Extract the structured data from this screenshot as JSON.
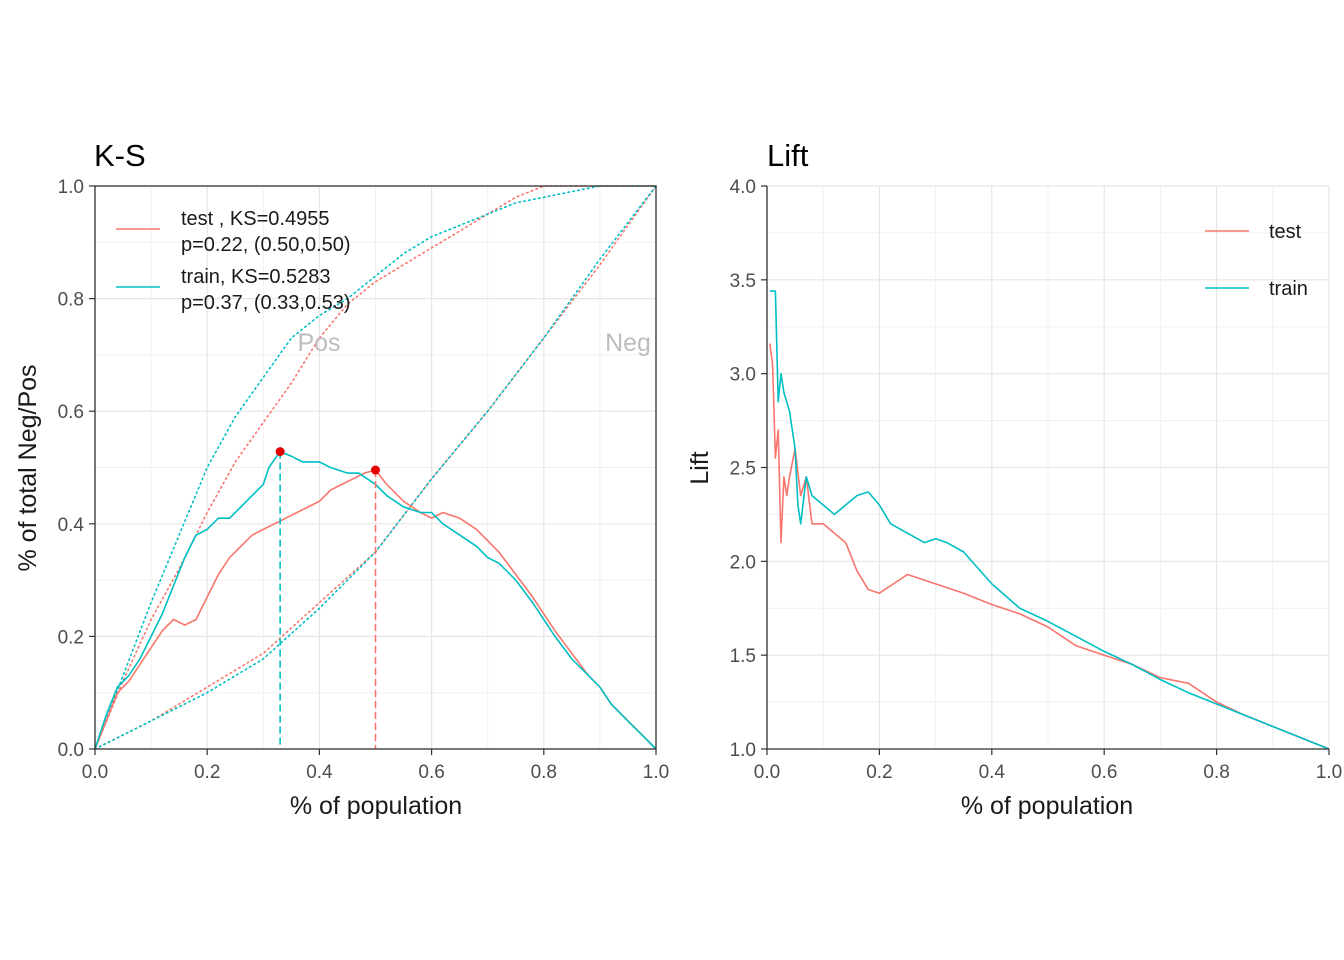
{
  "colors": {
    "test": "#F8766D",
    "train": "#00BFC4",
    "ks_point": "#e60000",
    "annotation": "#bdbdbd"
  },
  "chart_data": [
    {
      "type": "line",
      "title": "K-S",
      "xlabel": "% of population",
      "ylabel": "% of total Neg/Pos",
      "xlim": [
        0,
        1
      ],
      "ylim": [
        0,
        1
      ],
      "xticks": [
        0.0,
        0.2,
        0.4,
        0.6,
        0.8,
        1.0
      ],
      "xtick_labels": [
        "0.0",
        "0.2",
        "0.4",
        "0.6",
        "0.8",
        "1.0"
      ],
      "yticks": [
        0.0,
        0.2,
        0.4,
        0.6,
        0.8,
        1.0
      ],
      "ytick_labels": [
        "0.0",
        "0.2",
        "0.4",
        "0.6",
        "0.8",
        "1.0"
      ],
      "grid": true,
      "legend_position": "top-left",
      "legend": [
        {
          "key": "test",
          "line1": "test , KS=0.4955",
          "line2": "p=0.22, (0.50,0.50)"
        },
        {
          "key": "train",
          "line1": "train, KS=0.5283",
          "line2": "p=0.37, (0.33,0.53)"
        }
      ],
      "annotations": [
        {
          "text": "Pos",
          "x": 0.4,
          "y": 0.72
        },
        {
          "text": "Neg",
          "x": 0.95,
          "y": 0.72
        }
      ],
      "series": [
        {
          "name": "test",
          "role": "ks",
          "color_key": "test",
          "x": [
            0,
            0.02,
            0.04,
            0.06,
            0.08,
            0.1,
            0.12,
            0.14,
            0.16,
            0.18,
            0.2,
            0.22,
            0.24,
            0.26,
            0.28,
            0.3,
            0.32,
            0.34,
            0.36,
            0.38,
            0.4,
            0.42,
            0.44,
            0.46,
            0.48,
            0.5,
            0.52,
            0.55,
            0.58,
            0.6,
            0.62,
            0.65,
            0.68,
            0.7,
            0.72,
            0.75,
            0.78,
            0.8,
            0.82,
            0.85,
            0.88,
            0.9,
            0.92,
            0.95,
            0.98,
            1.0
          ],
          "y": [
            0,
            0.05,
            0.1,
            0.12,
            0.15,
            0.18,
            0.21,
            0.23,
            0.22,
            0.23,
            0.27,
            0.31,
            0.34,
            0.36,
            0.38,
            0.39,
            0.4,
            0.41,
            0.42,
            0.43,
            0.44,
            0.46,
            0.47,
            0.48,
            0.49,
            0.4955,
            0.47,
            0.44,
            0.42,
            0.41,
            0.42,
            0.41,
            0.39,
            0.37,
            0.35,
            0.31,
            0.27,
            0.24,
            0.21,
            0.17,
            0.13,
            0.11,
            0.08,
            0.05,
            0.02,
            0
          ]
        },
        {
          "name": "train",
          "role": "ks",
          "color_key": "train",
          "x": [
            0,
            0.02,
            0.04,
            0.06,
            0.08,
            0.1,
            0.12,
            0.14,
            0.16,
            0.18,
            0.2,
            0.22,
            0.24,
            0.26,
            0.28,
            0.3,
            0.31,
            0.33,
            0.35,
            0.37,
            0.4,
            0.42,
            0.45,
            0.47,
            0.5,
            0.52,
            0.55,
            0.58,
            0.6,
            0.62,
            0.65,
            0.68,
            0.7,
            0.72,
            0.75,
            0.78,
            0.8,
            0.82,
            0.85,
            0.88,
            0.9,
            0.92,
            0.95,
            0.98,
            1.0
          ],
          "y": [
            0,
            0.06,
            0.11,
            0.13,
            0.16,
            0.2,
            0.24,
            0.29,
            0.34,
            0.38,
            0.39,
            0.41,
            0.41,
            0.43,
            0.45,
            0.47,
            0.5,
            0.5283,
            0.52,
            0.51,
            0.51,
            0.5,
            0.49,
            0.49,
            0.47,
            0.45,
            0.43,
            0.42,
            0.42,
            0.4,
            0.38,
            0.36,
            0.34,
            0.33,
            0.3,
            0.26,
            0.23,
            0.2,
            0.16,
            0.13,
            0.11,
            0.08,
            0.05,
            0.02,
            0
          ]
        },
        {
          "name": "test",
          "role": "cum_pos",
          "color_key": "test",
          "x": [
            0,
            0.05,
            0.1,
            0.15,
            0.2,
            0.25,
            0.3,
            0.35,
            0.4,
            0.45,
            0.5,
            0.55,
            0.6,
            0.65,
            0.7,
            0.75,
            0.8,
            0.85,
            0.9,
            0.95,
            1.0
          ],
          "y": [
            0,
            0.12,
            0.23,
            0.32,
            0.42,
            0.51,
            0.58,
            0.65,
            0.73,
            0.79,
            0.83,
            0.86,
            0.89,
            0.92,
            0.95,
            0.98,
            1.0,
            1.0,
            1.0,
            1.0,
            1.0
          ]
        },
        {
          "name": "train",
          "role": "cum_pos",
          "color_key": "train",
          "x": [
            0,
            0.05,
            0.1,
            0.15,
            0.2,
            0.25,
            0.3,
            0.35,
            0.4,
            0.45,
            0.5,
            0.55,
            0.6,
            0.65,
            0.7,
            0.75,
            0.8,
            0.85,
            0.9,
            0.95,
            1.0
          ],
          "y": [
            0,
            0.13,
            0.26,
            0.38,
            0.5,
            0.59,
            0.66,
            0.73,
            0.77,
            0.8,
            0.84,
            0.88,
            0.91,
            0.93,
            0.95,
            0.97,
            0.98,
            0.99,
            1.0,
            1.0,
            1.0
          ]
        },
        {
          "name": "test",
          "role": "cum_neg",
          "color_key": "test",
          "x": [
            0,
            0.1,
            0.2,
            0.3,
            0.4,
            0.5,
            0.6,
            0.7,
            0.8,
            0.9,
            1.0
          ],
          "y": [
            0,
            0.05,
            0.11,
            0.17,
            0.26,
            0.35,
            0.48,
            0.6,
            0.73,
            0.86,
            1.0
          ]
        },
        {
          "name": "train",
          "role": "cum_neg",
          "color_key": "train",
          "x": [
            0,
            0.1,
            0.2,
            0.3,
            0.4,
            0.5,
            0.6,
            0.7,
            0.8,
            0.9,
            1.0
          ],
          "y": [
            0,
            0.05,
            0.1,
            0.16,
            0.25,
            0.35,
            0.48,
            0.6,
            0.73,
            0.87,
            1.0
          ]
        }
      ],
      "ks_points": [
        {
          "series": "test",
          "x": 0.5,
          "y": 0.4955
        },
        {
          "series": "train",
          "x": 0.33,
          "y": 0.5283
        }
      ]
    },
    {
      "type": "line",
      "title": "Lift",
      "xlabel": "% of population",
      "ylabel": "Lift",
      "xlim": [
        0,
        1
      ],
      "ylim": [
        1,
        4
      ],
      "xticks": [
        0.0,
        0.2,
        0.4,
        0.6,
        0.8,
        1.0
      ],
      "xtick_labels": [
        "0.0",
        "0.2",
        "0.4",
        "0.6",
        "0.8",
        "1.0"
      ],
      "yticks": [
        1.0,
        1.5,
        2.0,
        2.5,
        3.0,
        3.5,
        4.0
      ],
      "ytick_labels": [
        "1.0",
        "1.5",
        "2.0",
        "2.5",
        "3.0",
        "3.5",
        "4.0"
      ],
      "grid": true,
      "legend_position": "top-right",
      "legend": [
        {
          "key": "test",
          "line1": "test"
        },
        {
          "key": "train",
          "line1": "train"
        }
      ],
      "series": [
        {
          "name": "test",
          "color_key": "test",
          "x": [
            0.005,
            0.01,
            0.015,
            0.02,
            0.025,
            0.03,
            0.035,
            0.04,
            0.05,
            0.06,
            0.07,
            0.08,
            0.1,
            0.12,
            0.14,
            0.16,
            0.18,
            0.2,
            0.25,
            0.3,
            0.35,
            0.4,
            0.45,
            0.5,
            0.55,
            0.6,
            0.65,
            0.7,
            0.75,
            0.8,
            0.85,
            0.9,
            0.95,
            1.0
          ],
          "y": [
            3.16,
            3.05,
            2.55,
            2.7,
            2.1,
            2.45,
            2.35,
            2.45,
            2.6,
            2.35,
            2.45,
            2.2,
            2.2,
            2.15,
            2.1,
            1.95,
            1.85,
            1.83,
            1.93,
            1.88,
            1.83,
            1.77,
            1.72,
            1.65,
            1.55,
            1.5,
            1.45,
            1.38,
            1.35,
            1.25,
            1.18,
            1.12,
            1.06,
            1.0
          ]
        },
        {
          "name": "train",
          "color_key": "train",
          "x": [
            0.005,
            0.01,
            0.015,
            0.02,
            0.025,
            0.03,
            0.04,
            0.05,
            0.055,
            0.06,
            0.07,
            0.08,
            0.1,
            0.12,
            0.14,
            0.16,
            0.18,
            0.2,
            0.22,
            0.25,
            0.28,
            0.3,
            0.32,
            0.35,
            0.4,
            0.45,
            0.5,
            0.55,
            0.6,
            0.65,
            0.7,
            0.75,
            0.8,
            0.85,
            0.9,
            0.95,
            1.0
          ],
          "y": [
            3.44,
            3.44,
            3.44,
            2.85,
            3.0,
            2.9,
            2.8,
            2.6,
            2.3,
            2.2,
            2.45,
            2.35,
            2.3,
            2.25,
            2.3,
            2.35,
            2.37,
            2.3,
            2.2,
            2.15,
            2.1,
            2.12,
            2.1,
            2.05,
            1.88,
            1.75,
            1.68,
            1.6,
            1.52,
            1.45,
            1.37,
            1.3,
            1.24,
            1.18,
            1.12,
            1.06,
            1.0
          ]
        }
      ]
    }
  ]
}
